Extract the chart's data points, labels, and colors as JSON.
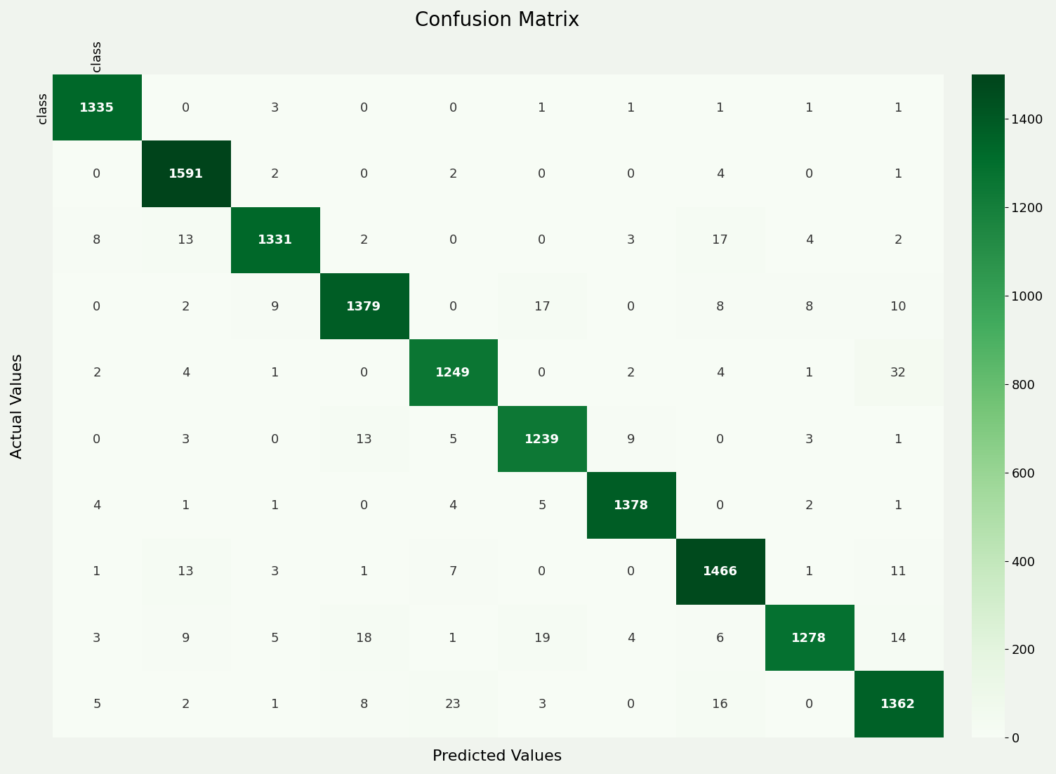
{
  "title": "Confusion Matrix",
  "xlabel": "Predicted Values",
  "ylabel": "Actual Values",
  "matrix": [
    [
      1335,
      0,
      3,
      0,
      0,
      1,
      1,
      1,
      1,
      1
    ],
    [
      0,
      1591,
      2,
      0,
      2,
      0,
      0,
      4,
      0,
      1
    ],
    [
      8,
      13,
      1331,
      2,
      0,
      0,
      3,
      17,
      4,
      2
    ],
    [
      0,
      2,
      9,
      1379,
      0,
      17,
      0,
      8,
      8,
      10
    ],
    [
      2,
      4,
      1,
      0,
      1249,
      0,
      2,
      4,
      1,
      32
    ],
    [
      0,
      3,
      0,
      13,
      5,
      1239,
      9,
      0,
      3,
      1
    ],
    [
      4,
      1,
      1,
      0,
      4,
      5,
      1378,
      0,
      2,
      1
    ],
    [
      1,
      13,
      3,
      1,
      7,
      0,
      0,
      1466,
      1,
      11
    ],
    [
      3,
      9,
      5,
      18,
      1,
      19,
      4,
      6,
      1278,
      14
    ],
    [
      5,
      2,
      1,
      8,
      23,
      3,
      0,
      16,
      0,
      1362
    ]
  ],
  "tick_label": "class",
  "colormap": "Greens",
  "vmin": 0,
  "vmax": 1500,
  "background_color": "#f0f4ee",
  "title_fontsize": 20,
  "axis_label_fontsize": 16,
  "cell_fontsize": 13,
  "diagonal_text_color": "white",
  "off_diagonal_text_color": "#333333",
  "figsize": [
    15.04,
    11.02
  ],
  "dpi": 100,
  "colorbar_ticks": [
    0,
    200,
    400,
    600,
    800,
    1000,
    1200,
    1400
  ]
}
